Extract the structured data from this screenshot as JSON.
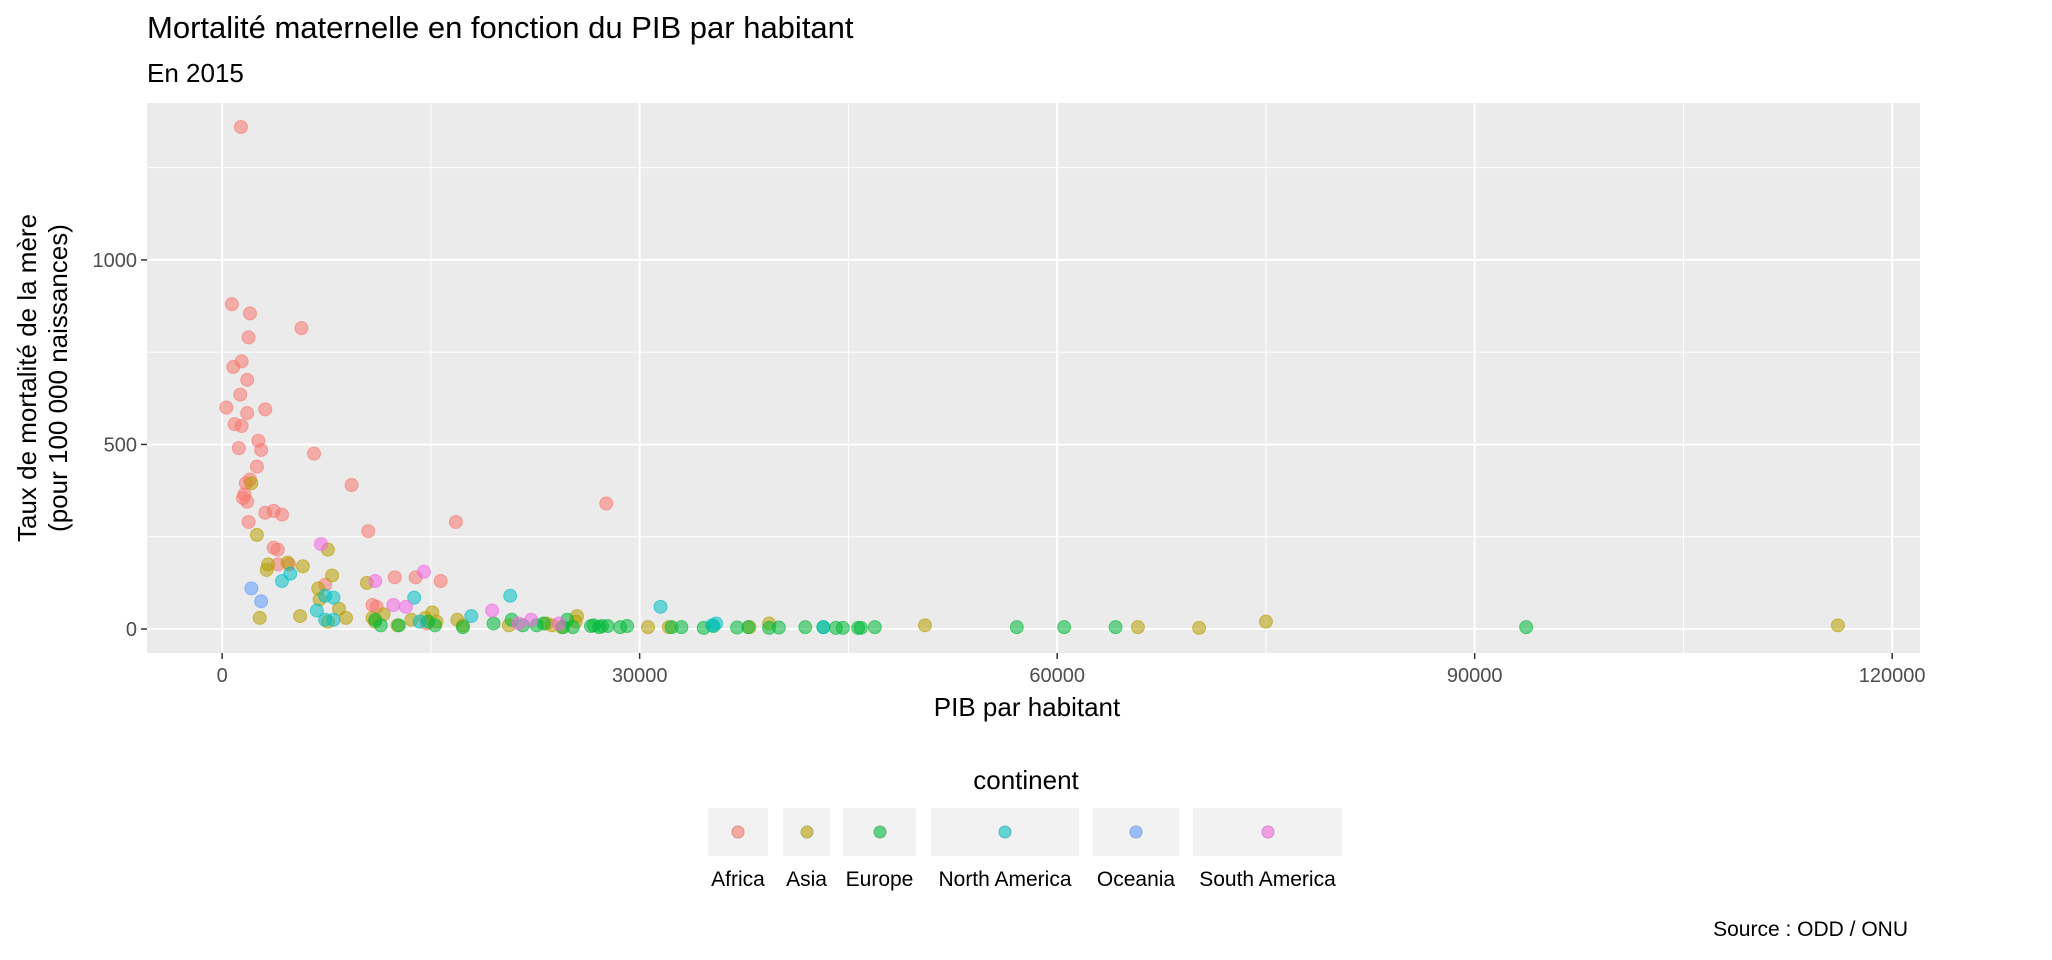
{
  "chart_data": {
    "type": "scatter",
    "title": "Mortalité maternelle en fonction du PIB par habitant",
    "subtitle": "En 2015",
    "xlabel": "PIB par habitant",
    "ylabel_line1": "Taux de mortalité de la mère",
    "ylabel_line2": "(pour 100 000 naissances)",
    "caption": "Source : ODD / ONU",
    "xlim": [
      -5400,
      122000
    ],
    "ylim": [
      -65,
      1425
    ],
    "x_ticks": [
      0,
      30000,
      60000,
      90000,
      120000
    ],
    "x_tick_labels": [
      "0",
      "30000",
      "60000",
      "90000",
      "120000"
    ],
    "y_ticks": [
      0,
      500,
      1000
    ],
    "y_tick_labels": [
      "0",
      "500",
      "1000"
    ],
    "grid": true,
    "legend_title": "continent",
    "legend_position": "bottom",
    "series": [
      {
        "name": "Africa",
        "color": "#F8766D",
        "points": [
          [
            1350,
            1360
          ],
          [
            700,
            880
          ],
          [
            2000,
            855
          ],
          [
            5700,
            815
          ],
          [
            1900,
            790
          ],
          [
            1400,
            725
          ],
          [
            800,
            710
          ],
          [
            1800,
            675
          ],
          [
            1300,
            635
          ],
          [
            300,
            600
          ],
          [
            1800,
            585
          ],
          [
            3100,
            595
          ],
          [
            900,
            555
          ],
          [
            1400,
            550
          ],
          [
            2600,
            510
          ],
          [
            2800,
            485
          ],
          [
            6600,
            475
          ],
          [
            1200,
            490
          ],
          [
            2500,
            440
          ],
          [
            2000,
            405
          ],
          [
            1700,
            395
          ],
          [
            9300,
            390
          ],
          [
            1600,
            365
          ],
          [
            1500,
            355
          ],
          [
            1800,
            345
          ],
          [
            27600,
            340
          ],
          [
            16800,
            290
          ],
          [
            1900,
            290
          ],
          [
            3100,
            315
          ],
          [
            3700,
            320
          ],
          [
            4300,
            310
          ],
          [
            10500,
            265
          ],
          [
            3700,
            220
          ],
          [
            4000,
            215
          ],
          [
            15700,
            130
          ],
          [
            12400,
            140
          ],
          [
            13900,
            140
          ],
          [
            7400,
            120
          ],
          [
            10800,
            65
          ],
          [
            11100,
            60
          ],
          [
            14700,
            15
          ],
          [
            4000,
            175
          ],
          [
            4800,
            175
          ]
        ]
      },
      {
        "name": "Asia",
        "color": "#B79F00",
        "points": [
          [
            2100,
            395
          ],
          [
            2500,
            255
          ],
          [
            7600,
            215
          ],
          [
            3300,
            175
          ],
          [
            3200,
            160
          ],
          [
            4700,
            180
          ],
          [
            5800,
            170
          ],
          [
            7900,
            145
          ],
          [
            6900,
            110
          ],
          [
            10400,
            125
          ],
          [
            7000,
            80
          ],
          [
            8400,
            55
          ],
          [
            8900,
            30
          ],
          [
            5600,
            35
          ],
          [
            2700,
            30
          ],
          [
            11600,
            40
          ],
          [
            12600,
            10
          ],
          [
            13600,
            25
          ],
          [
            14600,
            30
          ],
          [
            15100,
            45
          ],
          [
            15400,
            20
          ],
          [
            16900,
            25
          ],
          [
            17300,
            10
          ],
          [
            20600,
            10
          ],
          [
            23300,
            15
          ],
          [
            23700,
            10
          ],
          [
            25400,
            20
          ],
          [
            25500,
            35
          ],
          [
            30600,
            5
          ],
          [
            32100,
            5
          ],
          [
            37900,
            5
          ],
          [
            39300,
            15
          ],
          [
            50500,
            10
          ],
          [
            65800,
            5
          ],
          [
            70200,
            3
          ],
          [
            75000,
            20
          ],
          [
            116100,
            10
          ],
          [
            10800,
            30
          ],
          [
            7600,
            20
          ],
          [
            24400,
            5
          ],
          [
            11000,
            20
          ]
        ]
      },
      {
        "name": "Europe",
        "color": "#00BA38",
        "points": [
          [
            11000,
            25
          ],
          [
            12700,
            10
          ],
          [
            15300,
            10
          ],
          [
            17300,
            5
          ],
          [
            20800,
            25
          ],
          [
            21600,
            10
          ],
          [
            23100,
            15
          ],
          [
            24500,
            5
          ],
          [
            24800,
            25
          ],
          [
            25200,
            5
          ],
          [
            26700,
            10
          ],
          [
            27100,
            5
          ],
          [
            27700,
            8
          ],
          [
            29100,
            8
          ],
          [
            32300,
            5
          ],
          [
            34600,
            3
          ],
          [
            37800,
            5
          ],
          [
            39300,
            3
          ],
          [
            41900,
            5
          ],
          [
            44100,
            3
          ],
          [
            44600,
            3
          ],
          [
            45700,
            3
          ],
          [
            46900,
            5
          ],
          [
            57100,
            5
          ],
          [
            60500,
            5
          ],
          [
            64200,
            5
          ],
          [
            93700,
            5
          ],
          [
            11400,
            10
          ],
          [
            14800,
            20
          ],
          [
            19500,
            15
          ],
          [
            26500,
            8
          ],
          [
            43200,
            5
          ],
          [
            45900,
            3
          ],
          [
            33000,
            5
          ],
          [
            35300,
            8
          ],
          [
            22600,
            10
          ],
          [
            27300,
            8
          ],
          [
            28600,
            5
          ],
          [
            37000,
            4
          ],
          [
            40000,
            4
          ]
        ]
      },
      {
        "name": "North America",
        "color": "#00BFC4",
        "points": [
          [
            4900,
            150
          ],
          [
            4300,
            130
          ],
          [
            7400,
            90
          ],
          [
            8000,
            85
          ],
          [
            6800,
            50
          ],
          [
            7400,
            25
          ],
          [
            8000,
            25
          ],
          [
            13800,
            85
          ],
          [
            14200,
            20
          ],
          [
            17900,
            35
          ],
          [
            20700,
            90
          ],
          [
            31500,
            60
          ],
          [
            35200,
            10
          ],
          [
            35500,
            15
          ],
          [
            43200,
            5
          ]
        ]
      },
      {
        "name": "Oceania",
        "color": "#619CFF",
        "points": [
          [
            2100,
            110
          ],
          [
            2800,
            75
          ]
        ]
      },
      {
        "name": "South America",
        "color": "#F564E3",
        "points": [
          [
            7100,
            230
          ],
          [
            11000,
            130
          ],
          [
            14500,
            155
          ],
          [
            12300,
            65
          ],
          [
            13200,
            60
          ],
          [
            19400,
            50
          ],
          [
            21300,
            15
          ],
          [
            22200,
            25
          ],
          [
            24200,
            15
          ]
        ]
      }
    ]
  }
}
